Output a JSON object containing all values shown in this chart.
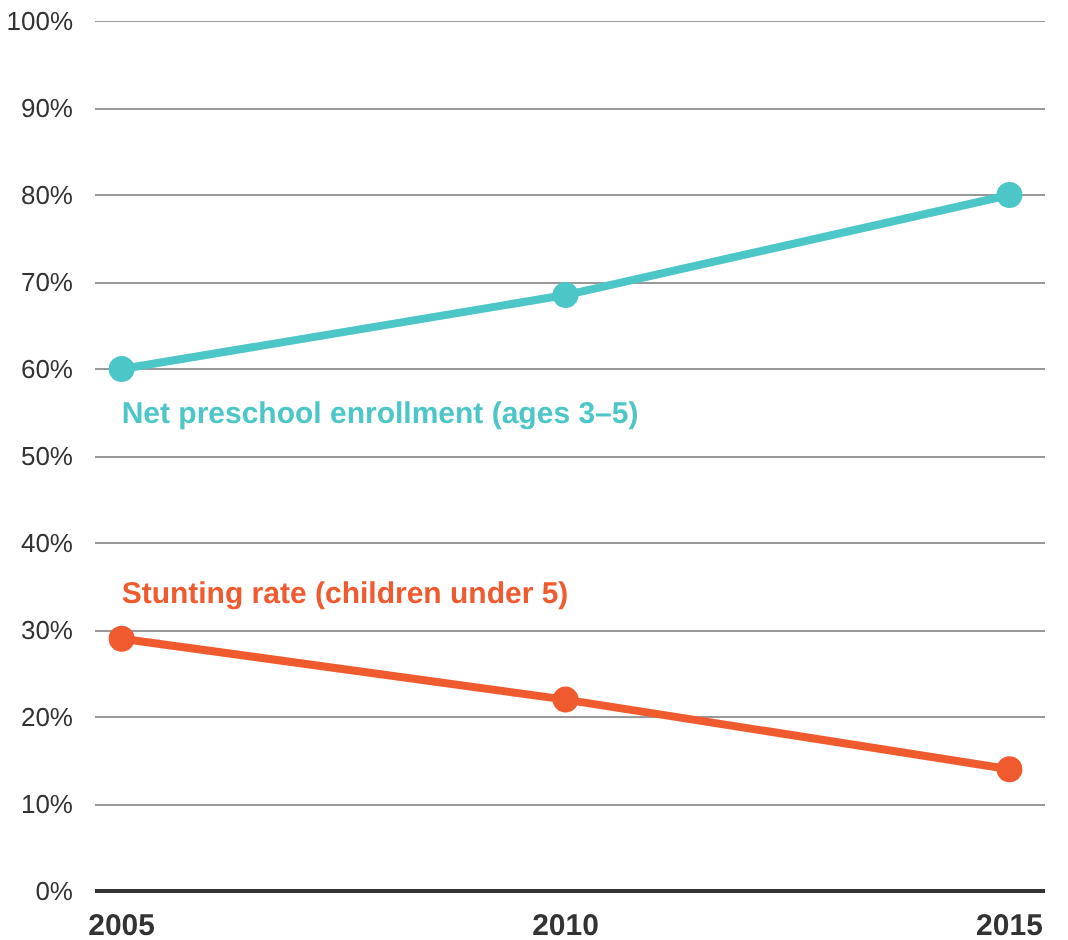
{
  "chart_data": {
    "type": "line",
    "x": [
      2005,
      2010,
      2015
    ],
    "series": [
      {
        "name": "Net preschool enrollment (ages 3–5)",
        "color": "#4cc6c6",
        "values": [
          60,
          68.5,
          80
        ]
      },
      {
        "name": "Stunting rate (children under 5)",
        "color": "#f05a2f",
        "values": [
          29,
          22,
          14
        ]
      }
    ],
    "xlim": [
      2004.7,
      2015.4
    ],
    "xticks": [
      2005,
      2010,
      2015
    ],
    "ylim": [
      0,
      100
    ],
    "yticks": [
      {
        "value": 0,
        "label": "0%"
      },
      {
        "value": 10,
        "label": "10%"
      },
      {
        "value": 20,
        "label": "20%"
      },
      {
        "value": 30,
        "label": "30%"
      },
      {
        "value": 40,
        "label": "40%"
      },
      {
        "value": 50,
        "label": "50%"
      },
      {
        "value": 60,
        "label": "60%"
      },
      {
        "value": 70,
        "label": "70%"
      },
      {
        "value": 80,
        "label": "80%"
      },
      {
        "value": 90,
        "label": "90%"
      },
      {
        "value": 100,
        "label": "100%"
      }
    ],
    "grid": "y",
    "marker": "circle",
    "line_style": "solid"
  }
}
